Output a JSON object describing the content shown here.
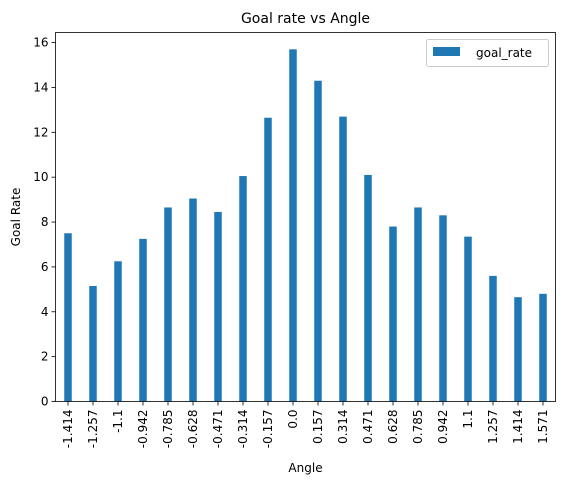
{
  "chart_data": {
    "type": "bar",
    "title": "Goal rate vs Angle",
    "xlabel": "Angle",
    "ylabel": "Goal Rate",
    "categories": [
      "-1.414",
      "-1.257",
      "-1.1",
      "-0.942",
      "-0.785",
      "-0.628",
      "-0.471",
      "-0.314",
      "-0.157",
      "0.0",
      "0.157",
      "0.314",
      "0.471",
      "0.628",
      "0.785",
      "0.942",
      "1.1",
      "1.257",
      "1.414",
      "1.571"
    ],
    "series": [
      {
        "name": "goal_rate",
        "color": "#1f77b4",
        "values": [
          7.5,
          5.15,
          6.25,
          7.25,
          8.65,
          9.05,
          8.45,
          10.05,
          12.65,
          15.7,
          14.3,
          12.7,
          10.1,
          7.8,
          8.65,
          8.3,
          7.35,
          5.6,
          4.65,
          4.8
        ]
      }
    ],
    "ylim": [
      0,
      16.45
    ],
    "yticks": [
      0,
      2,
      4,
      6,
      8,
      10,
      12,
      14,
      16
    ],
    "legend": "upper right",
    "grid": false
  }
}
